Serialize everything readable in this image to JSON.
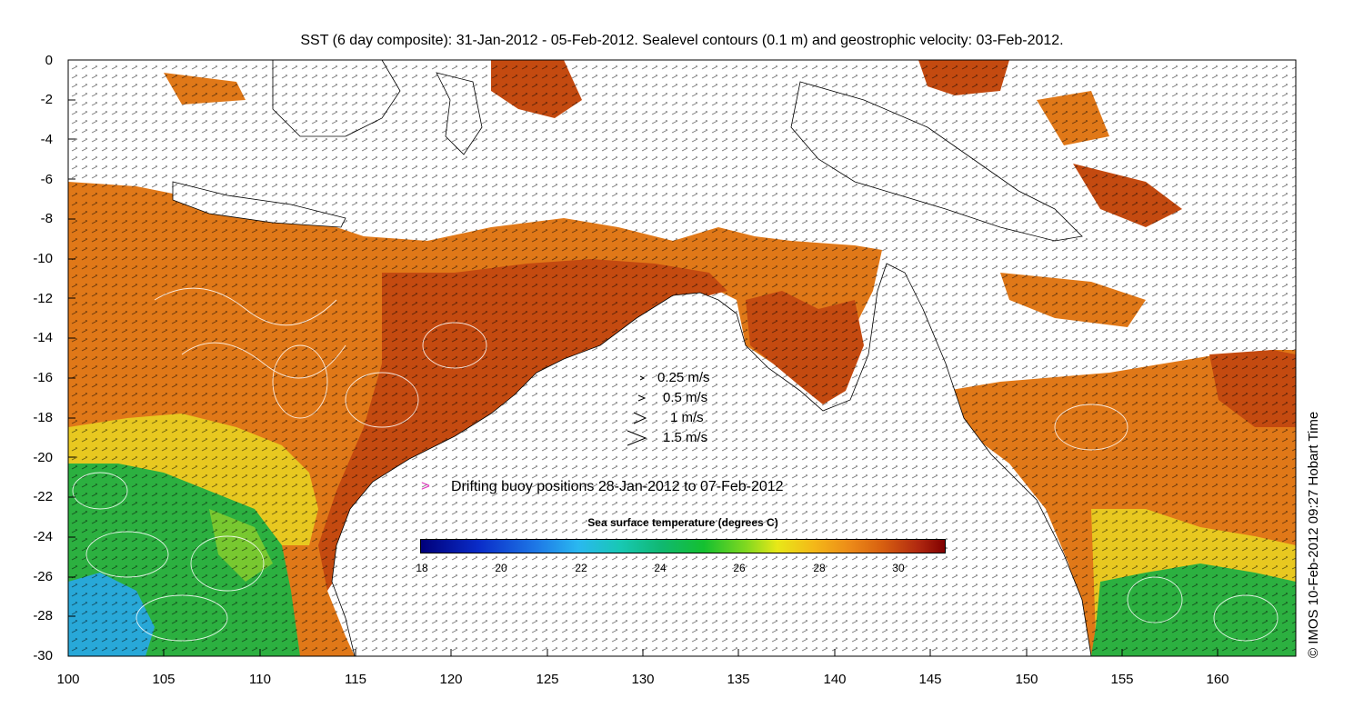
{
  "title": "SST (6 day composite): 31-Jan-2012 - 05-Feb-2012. Sealevel contours (0.1 m) and geostrophic velocity: 03-Feb-2012.",
  "axes": {
    "x_ticks": [
      "100",
      "105",
      "110",
      "115",
      "120",
      "125",
      "130",
      "135",
      "140",
      "145",
      "150",
      "155",
      "160"
    ],
    "y_ticks": [
      "0",
      "-2",
      "-4",
      "-6",
      "-8",
      "-10",
      "-12",
      "-14",
      "-16",
      "-18",
      "-20",
      "-22",
      "-24",
      "-26",
      "-28",
      "-30"
    ],
    "lon_range": [
      100,
      164
    ],
    "lat_range": [
      -30,
      0
    ]
  },
  "velocity_legend": [
    "0.25 m/s",
    "0.5 m/s",
    "1 m/s",
    "1.5 m/s"
  ],
  "buoy_legend": {
    "marker": ">",
    "label": "Drifting buoy positions 28-Jan-2012 to 07-Feb-2012",
    "color": "#e040c0"
  },
  "colorbar": {
    "title": "Sea surface temperature (degrees C)",
    "ticks": [
      "18",
      "20",
      "22",
      "24",
      "26",
      "28",
      "30"
    ],
    "range": [
      18,
      31.2
    ]
  },
  "copyright": "© IMOS 10-Feb-2012 09:27 Hobart Time",
  "colors": {
    "land": "#ffffff",
    "sst_warm": "#d86010",
    "sst_mid": "#14c030",
    "sst_cool": "#1e9ae6"
  }
}
